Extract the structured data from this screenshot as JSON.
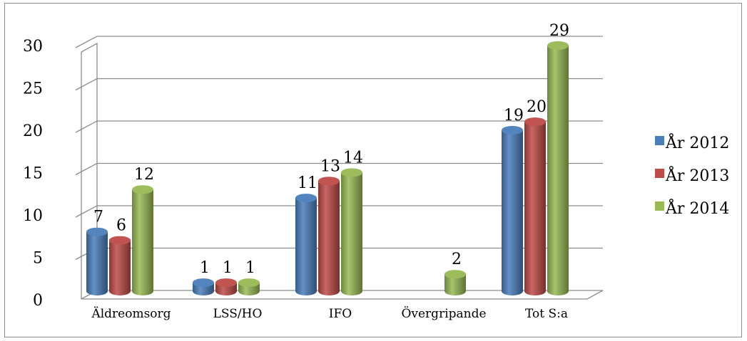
{
  "chart_data": {
    "type": "bar",
    "categories": [
      "Äldreomsorg",
      "LSS/HO",
      "IFO",
      "Övergripande",
      "Tot S:a"
    ],
    "series": [
      {
        "name": "År 2012",
        "color": "#4a7ebb",
        "values": [
          7,
          1,
          11,
          null,
          19
        ]
      },
      {
        "name": "År 2013",
        "color": "#be4b48",
        "values": [
          6,
          1,
          13,
          null,
          20
        ]
      },
      {
        "name": "År 2014",
        "color": "#98b954",
        "values": [
          12,
          1,
          14,
          2,
          29
        ]
      }
    ],
    "yticks": [
      "0",
      "5",
      "10",
      "15",
      "20",
      "25",
      "30"
    ],
    "ylim": [
      0,
      30
    ],
    "grid": true,
    "legend_position": "right",
    "style": "3d-cylinder"
  }
}
